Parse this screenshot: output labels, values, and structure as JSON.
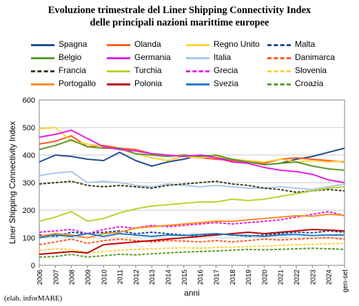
{
  "title_line1": "Evoluzione trimestrale del Liner Shipping Connectivity Index",
  "title_line2": "delle principali nazioni marittime europee",
  "credit": "(elab. inforMARE)",
  "chart_data": {
    "type": "line",
    "xlabel": "anni",
    "ylabel": "Liner Shipping Connectivity Index",
    "ylim": [
      0,
      600
    ],
    "yticks": [
      "0",
      "100",
      "200",
      "300",
      "400",
      "500",
      "600"
    ],
    "xticks": [
      "2006",
      "2007",
      "2008",
      "2009",
      "2010",
      "2011",
      "2012",
      "2013",
      "2014",
      "2015",
      "2016",
      "2017",
      "2018",
      "2019",
      "2020",
      "2021",
      "2022",
      "2023",
      "2024",
      "gen-set"
    ],
    "grid": true,
    "legend_position": "top",
    "x": [
      "2006",
      "2007",
      "2008",
      "2009",
      "2010",
      "2011",
      "2012",
      "2013",
      "2014",
      "2015",
      "2016",
      "2017",
      "2018",
      "2019",
      "2020",
      "2021",
      "2022",
      "2023",
      "2024",
      "gen-set"
    ],
    "series": [
      {
        "name": "Spagna",
        "color": "#1f4e8c",
        "dash": "solid",
        "values": [
          375,
          400,
          395,
          385,
          380,
          410,
          380,
          360,
          375,
          385,
          400,
          395,
          380,
          375,
          365,
          370,
          385,
          395,
          410,
          425
        ]
      },
      {
        "name": "Olanda",
        "color": "#ff5a1f",
        "dash": "solid",
        "values": [
          440,
          450,
          470,
          430,
          435,
          425,
          420,
          405,
          400,
          395,
          390,
          385,
          380,
          375,
          370,
          385,
          390,
          385,
          380,
          375
        ]
      },
      {
        "name": "Regno Unito",
        "color": "#ffd23a",
        "dash": "solid",
        "values": [
          495,
          500,
          450,
          440,
          430,
          420,
          405,
          390,
          380,
          395,
          390,
          395,
          385,
          380,
          375,
          385,
          375,
          380,
          375,
          378
        ]
      },
      {
        "name": "Malta",
        "color": "#1f4e8c",
        "dash": "dashed",
        "values": [
          110,
          105,
          120,
          115,
          120,
          125,
          115,
          120,
          115,
          110,
          105,
          115,
          110,
          105,
          110,
          115,
          120,
          118,
          125,
          120
        ]
      },
      {
        "name": "Belgio",
        "color": "#5a9a2a",
        "dash": "solid",
        "values": [
          420,
          435,
          455,
          430,
          425,
          425,
          405,
          400,
          395,
          400,
          395,
          400,
          385,
          375,
          365,
          370,
          375,
          360,
          350,
          345
        ]
      },
      {
        "name": "Germania",
        "color": "#e61ee6",
        "dash": "solid",
        "values": [
          465,
          475,
          490,
          460,
          430,
          420,
          415,
          405,
          400,
          395,
          400,
          390,
          375,
          370,
          355,
          345,
          340,
          330,
          310,
          300
        ]
      },
      {
        "name": "Italia",
        "color": "#a7c7ea",
        "dash": "solid",
        "values": [
          325,
          335,
          340,
          300,
          305,
          300,
          290,
          285,
          295,
          290,
          285,
          290,
          285,
          280,
          280,
          285,
          280,
          275,
          285,
          295
        ]
      },
      {
        "name": "Danimarca",
        "color": "#ff5a1f",
        "dash": "dashed",
        "values": [
          75,
          85,
          95,
          80,
          90,
          95,
          90,
          85,
          90,
          88,
          85,
          90,
          85,
          90,
          95,
          92,
          95,
          98,
          100,
          95
        ]
      },
      {
        "name": "Francia",
        "color": "#3a3a1a",
        "dash": "dashed",
        "values": [
          295,
          300,
          305,
          290,
          285,
          290,
          285,
          280,
          290,
          295,
          300,
          305,
          295,
          290,
          280,
          275,
          265,
          270,
          275,
          270
        ]
      },
      {
        "name": "Turchia",
        "color": "#b8d430",
        "dash": "solid",
        "values": [
          160,
          175,
          195,
          160,
          170,
          190,
          205,
          215,
          220,
          225,
          230,
          230,
          240,
          235,
          240,
          250,
          260,
          270,
          280,
          285
        ]
      },
      {
        "name": "Grecia",
        "color": "#e61ee6",
        "dash": "dashed",
        "values": [
          120,
          125,
          130,
          115,
          130,
          140,
          135,
          145,
          140,
          145,
          150,
          155,
          150,
          155,
          160,
          165,
          175,
          185,
          195,
          180
        ]
      },
      {
        "name": "Slovenia",
        "color": "#ffd23a",
        "dash": "dashed",
        "values": [
          55,
          60,
          58,
          45,
          50,
          55,
          58,
          60,
          62,
          64,
          62,
          65,
          66,
          68,
          70,
          72,
          75,
          76,
          78,
          80
        ]
      },
      {
        "name": "Portogallo",
        "color": "#ff8c1a",
        "dash": "solid",
        "values": [
          105,
          115,
          110,
          100,
          115,
          120,
          135,
          140,
          145,
          150,
          155,
          160,
          160,
          165,
          170,
          175,
          180,
          178,
          185,
          182
        ]
      },
      {
        "name": "Polonia",
        "color": "#c00000",
        "dash": "solid",
        "values": [
          40,
          45,
          50,
          45,
          75,
          80,
          85,
          90,
          95,
          100,
          105,
          110,
          115,
          120,
          115,
          120,
          125,
          130,
          128,
          125
        ]
      },
      {
        "name": "Svezia",
        "color": "#1f78c8",
        "dash": "solid",
        "values": [
          100,
          110,
          105,
          115,
          105,
          115,
          110,
          105,
          110,
          108,
          112,
          115,
          110,
          108,
          105,
          110,
          112,
          108,
          110,
          110
        ]
      },
      {
        "name": "Croazia",
        "color": "#5a9a2a",
        "dash": "dashed",
        "values": [
          30,
          32,
          40,
          30,
          35,
          40,
          38,
          42,
          45,
          48,
          50,
          52,
          55,
          58,
          56,
          58,
          60,
          62,
          60,
          58
        ]
      }
    ]
  }
}
